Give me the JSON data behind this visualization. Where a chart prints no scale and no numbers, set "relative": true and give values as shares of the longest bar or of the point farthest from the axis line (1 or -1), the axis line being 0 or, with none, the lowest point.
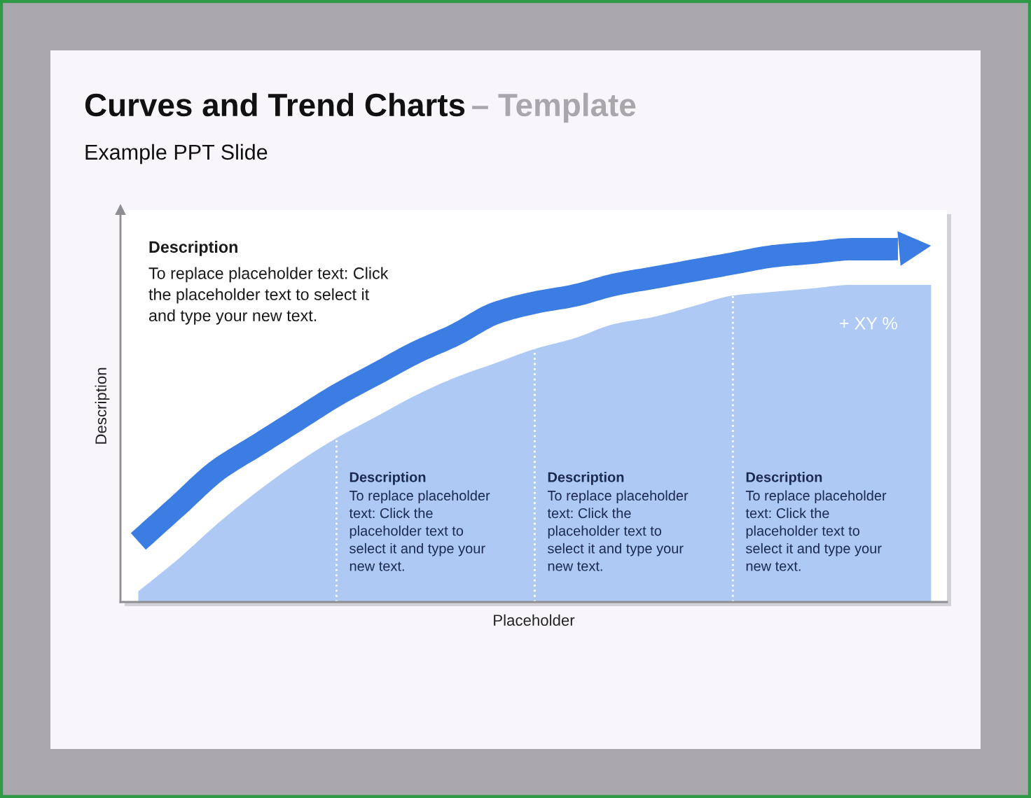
{
  "chart_data": {
    "type": "area",
    "title": "Curves and Trend Charts – Template",
    "subtitle": "Example PPT Slide",
    "xlabel": "Placeholder",
    "ylabel": "Description",
    "relative": true,
    "categories": [
      null,
      null,
      null,
      null,
      null,
      null,
      null,
      null,
      null,
      null,
      null,
      null,
      null,
      null,
      null,
      null,
      null,
      null,
      null,
      null,
      null
    ],
    "series": [
      {
        "color": "#adc9f4",
        "values": [
          0.03,
          0.12,
          0.22,
          0.31,
          0.39,
          0.46,
          0.52,
          0.58,
          0.63,
          0.67,
          0.71,
          0.74,
          0.78,
          0.8,
          0.83,
          0.86,
          0.87,
          0.88,
          0.89,
          0.89,
          0.89
        ]
      },
      {
        "type": "line",
        "color": "#3b7de3",
        "values": [
          0.17,
          0.27,
          0.37,
          0.44,
          0.51,
          0.58,
          0.64,
          0.7,
          0.75,
          0.81,
          0.84,
          0.86,
          0.89,
          0.91,
          0.93,
          0.95,
          0.97,
          0.98,
          0.99,
          0.99,
          1.0
        ]
      }
    ],
    "annotations": [
      "Description\nTo replace placeholder text: Click\nthe placeholder text to select it\nand type your new text.",
      "Description\nTo replace placeholder\ntext: Click the\nplaceholder text to\nselect it and type your\nnew text.",
      "Description\nTo replace placeholder\ntext: Click the\nplaceholder text to\nselect it and type your\nnew text.",
      "Description\nTo replace placeholder\ntext: Click the\nplaceholder text to\nselect it and type your\nnew text.",
      "+ XY %"
    ]
  }
}
